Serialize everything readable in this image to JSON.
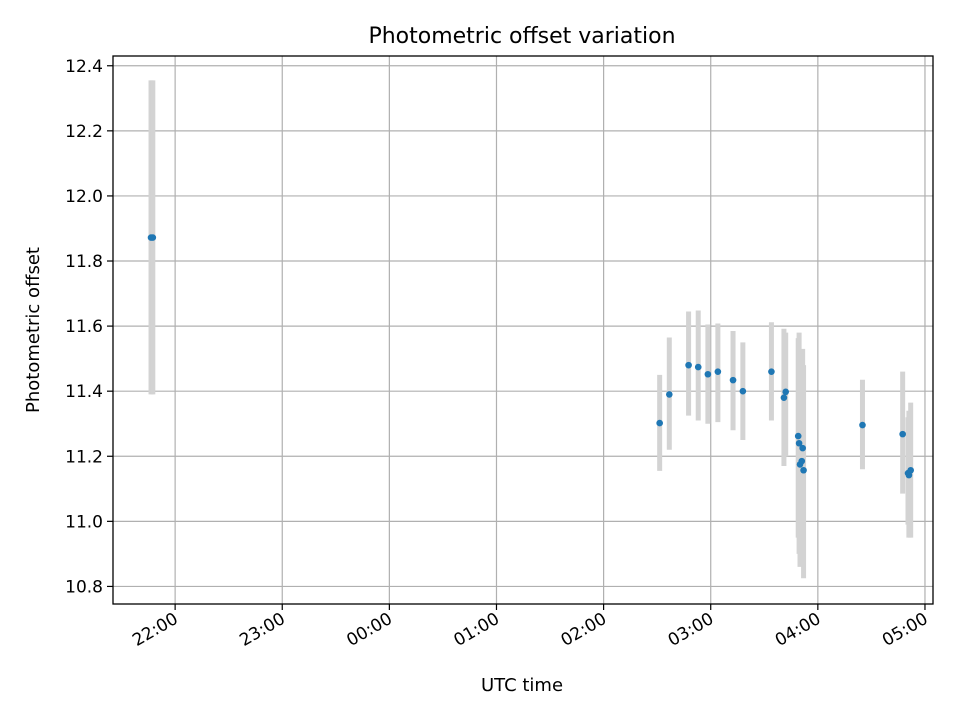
{
  "chart_data": {
    "type": "scatter",
    "title": "Photometric offset variation",
    "xlabel": "UTC time",
    "ylabel": "Photometric offset",
    "grid": true,
    "x_tick_labels": [
      "22:00",
      "23:00",
      "00:00",
      "01:00",
      "02:00",
      "03:00",
      "04:00",
      "05:00"
    ],
    "x_ticks": [
      0,
      60,
      120,
      180,
      240,
      300,
      360,
      420
    ],
    "xlim": [
      -34.8,
      424.5
    ],
    "y_ticks": [
      10.8,
      11.0,
      11.2,
      11.4,
      11.6,
      11.8,
      12.0,
      12.2,
      12.4
    ],
    "y_tick_labels": [
      "10.8",
      "11.0",
      "11.2",
      "11.4",
      "11.6",
      "11.8",
      "12.0",
      "12.2",
      "12.4"
    ],
    "ylim": [
      10.746,
      12.43
    ],
    "marker_color": "#1f77b4",
    "errorbar_color": "#d3d3d3",
    "points": [
      {
        "x": -13.5,
        "y": 11.872,
        "ylow": 11.39,
        "yhigh": 12.355
      },
      {
        "x": -12.5,
        "y": 11.872,
        "ylow": 11.39,
        "yhigh": 12.355
      },
      {
        "x": 271.4,
        "y": 11.302,
        "ylow": 11.155,
        "yhigh": 11.45
      },
      {
        "x": 276.8,
        "y": 11.39,
        "ylow": 11.22,
        "yhigh": 11.565
      },
      {
        "x": 287.6,
        "y": 11.48,
        "ylow": 11.325,
        "yhigh": 11.645
      },
      {
        "x": 293.0,
        "y": 11.474,
        "ylow": 11.31,
        "yhigh": 11.648
      },
      {
        "x": 298.4,
        "y": 11.452,
        "ylow": 11.3,
        "yhigh": 11.605
      },
      {
        "x": 304.0,
        "y": 11.46,
        "ylow": 11.305,
        "yhigh": 11.608
      },
      {
        "x": 312.5,
        "y": 11.434,
        "ylow": 11.28,
        "yhigh": 11.585
      },
      {
        "x": 318.0,
        "y": 11.4,
        "ylow": 11.25,
        "yhigh": 11.55
      },
      {
        "x": 334.0,
        "y": 11.46,
        "ylow": 11.31,
        "yhigh": 11.612
      },
      {
        "x": 341.0,
        "y": 11.38,
        "ylow": 11.17,
        "yhigh": 11.592
      },
      {
        "x": 342.0,
        "y": 11.398,
        "ylow": 11.2,
        "yhigh": 11.58
      },
      {
        "x": 349.0,
        "y": 11.262,
        "ylow": 10.95,
        "yhigh": 11.563
      },
      {
        "x": 349.5,
        "y": 11.24,
        "ylow": 10.9,
        "yhigh": 11.58
      },
      {
        "x": 350.0,
        "y": 11.175,
        "ylow": 10.86,
        "yhigh": 11.49
      },
      {
        "x": 351.0,
        "y": 11.185,
        "ylow": 10.92,
        "yhigh": 11.45
      },
      {
        "x": 351.5,
        "y": 11.225,
        "ylow": 10.93,
        "yhigh": 11.53
      },
      {
        "x": 352.0,
        "y": 11.157,
        "ylow": 10.825,
        "yhigh": 11.48
      },
      {
        "x": 385.0,
        "y": 11.296,
        "ylow": 11.16,
        "yhigh": 11.435
      },
      {
        "x": 407.5,
        "y": 11.268,
        "ylow": 11.085,
        "yhigh": 11.46
      },
      {
        "x": 410.5,
        "y": 11.148,
        "ylow": 10.99,
        "yhigh": 11.32
      },
      {
        "x": 411.0,
        "y": 11.142,
        "ylow": 10.95,
        "yhigh": 11.34
      },
      {
        "x": 412.0,
        "y": 11.157,
        "ylow": 10.95,
        "yhigh": 11.365
      }
    ]
  }
}
